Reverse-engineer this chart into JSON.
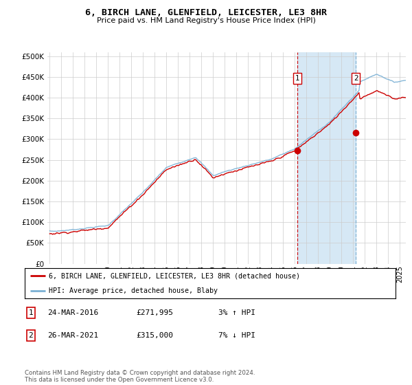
{
  "title": "6, BIRCH LANE, GLENFIELD, LEICESTER, LE3 8HR",
  "subtitle": "Price paid vs. HM Land Registry's House Price Index (HPI)",
  "ylabel_ticks": [
    "£0",
    "£50K",
    "£100K",
    "£150K",
    "£200K",
    "£250K",
    "£300K",
    "£350K",
    "£400K",
    "£450K",
    "£500K"
  ],
  "ytick_values": [
    0,
    50000,
    100000,
    150000,
    200000,
    250000,
    300000,
    350000,
    400000,
    450000,
    500000
  ],
  "ylim": [
    0,
    510000
  ],
  "xlim_start": 1994.8,
  "xlim_end": 2025.5,
  "sale1": {
    "date": 2016.22,
    "price": 271995,
    "label": "1",
    "pct": "3%",
    "dir": "↑",
    "date_str": "24-MAR-2016"
  },
  "sale2": {
    "date": 2021.22,
    "price": 315000,
    "label": "2",
    "pct": "7%",
    "dir": "↓",
    "date_str": "26-MAR-2021"
  },
  "red_color": "#cc0000",
  "blue_color": "#7ab0d4",
  "vline1_color": "#cc0000",
  "vline2_color": "#7ab0d4",
  "span_color": "#d6e8f5",
  "grid_color": "#cccccc",
  "bg_color": "#ffffff",
  "legend_label_red": "6, BIRCH LANE, GLENFIELD, LEICESTER, LE3 8HR (detached house)",
  "legend_label_blue": "HPI: Average price, detached house, Blaby",
  "footer": "Contains HM Land Registry data © Crown copyright and database right 2024.\nThis data is licensed under the Open Government Licence v3.0."
}
